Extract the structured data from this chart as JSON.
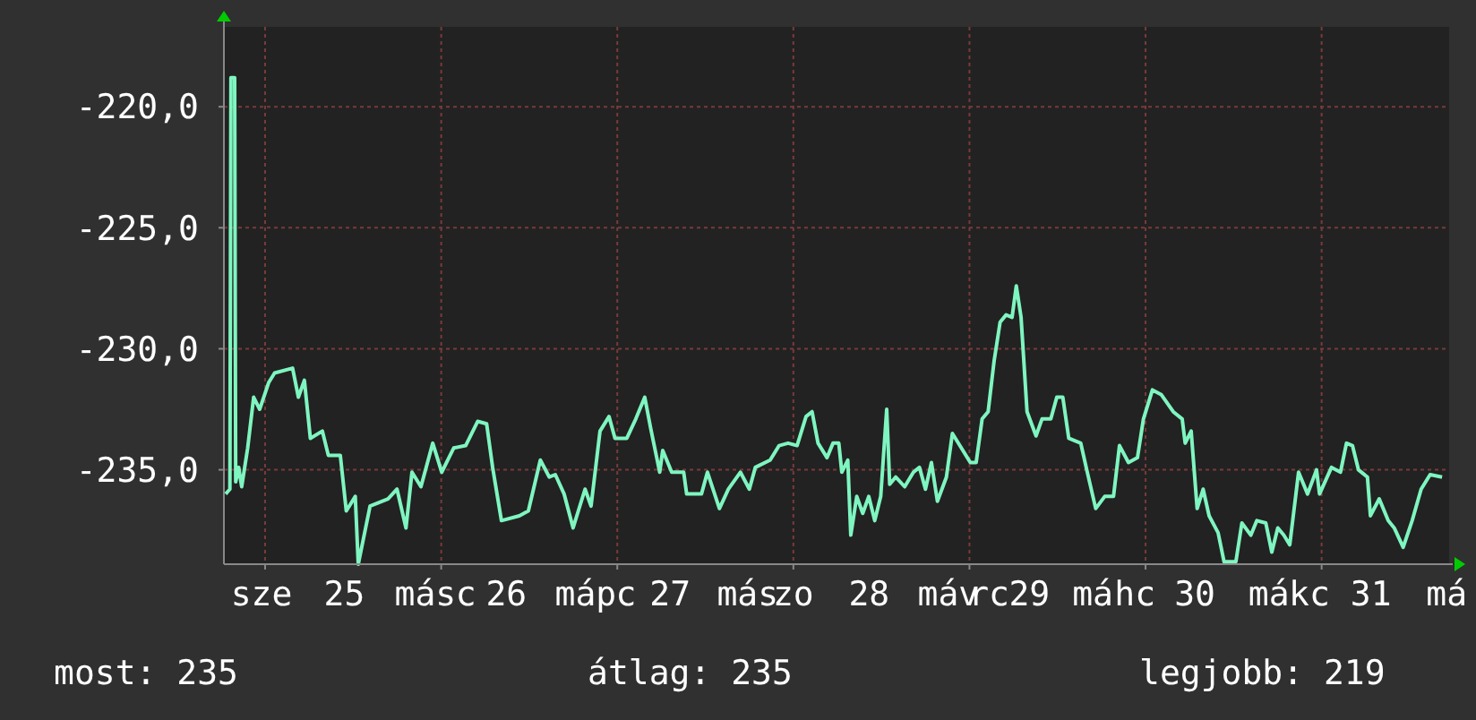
{
  "chart_data": {
    "type": "line",
    "x": [
      24.776,
      24.8,
      24.806,
      24.827,
      24.833,
      24.85,
      24.867,
      24.901,
      24.935,
      24.969,
      25.02,
      25.054,
      25.156,
      25.189,
      25.223,
      25.257,
      25.325,
      25.359,
      25.427,
      25.461,
      25.512,
      25.529,
      25.596,
      25.698,
      25.749,
      25.8,
      25.834,
      25.885,
      25.952,
      26.003,
      26.071,
      26.139,
      26.207,
      26.258,
      26.292,
      26.342,
      26.444,
      26.495,
      26.563,
      26.614,
      26.648,
      26.698,
      26.749,
      26.817,
      26.851,
      26.902,
      26.953,
      26.987,
      27.054,
      27.105,
      27.156,
      27.19,
      27.241,
      27.258,
      27.309,
      27.377,
      27.394,
      27.478,
      27.512,
      27.58,
      27.631,
      27.699,
      27.75,
      27.784,
      27.868,
      27.919,
      27.97,
      28.021,
      28.072,
      28.106,
      28.14,
      28.191,
      28.225,
      28.258,
      28.275,
      28.309,
      28.326,
      28.36,
      28.394,
      28.428,
      28.462,
      28.496,
      28.53,
      28.547,
      28.581,
      28.632,
      28.682,
      28.716,
      28.75,
      28.784,
      28.818,
      28.869,
      28.903,
      28.954,
      29.005,
      29.038,
      29.072,
      29.106,
      29.14,
      29.174,
      29.208,
      29.242,
      29.266,
      29.293,
      29.327,
      29.378,
      29.412,
      29.462,
      29.496,
      29.53,
      29.564,
      29.632,
      29.666,
      29.717,
      29.768,
      29.818,
      29.852,
      29.903,
      29.954,
      29.988,
      30.039,
      30.09,
      30.157,
      30.208,
      30.225,
      30.259,
      30.293,
      30.327,
      30.361,
      30.412,
      30.446,
      30.513,
      30.547,
      30.598,
      30.632,
      30.683,
      30.717,
      30.751,
      30.785,
      30.819,
      30.869,
      30.92,
      30.971,
      30.988,
      31.056,
      31.107,
      31.141,
      31.175,
      31.209,
      31.26,
      31.277,
      31.327,
      31.378,
      31.412,
      31.463,
      31.514,
      31.565,
      31.616,
      31.684
    ],
    "series": [
      {
        "color": "#7ff5c0",
        "values": [
          -236.0,
          -235.8,
          -218.8,
          -218.8,
          -235.5,
          -234.9,
          -235.7,
          -234.1,
          -232.0,
          -232.5,
          -231.4,
          -231.0,
          -230.8,
          -232.0,
          -231.3,
          -233.7,
          -233.4,
          -234.4,
          -234.4,
          -236.7,
          -236.1,
          -238.9,
          -236.5,
          -236.2,
          -235.8,
          -237.4,
          -235.1,
          -235.7,
          -233.9,
          -235.1,
          -234.1,
          -234.0,
          -233.0,
          -233.1,
          -234.9,
          -237.1,
          -236.9,
          -236.7,
          -234.6,
          -235.3,
          -235.2,
          -236.0,
          -237.4,
          -235.8,
          -236.5,
          -233.4,
          -232.8,
          -233.7,
          -233.7,
          -232.9,
          -232.0,
          -233.3,
          -235.1,
          -234.2,
          -235.1,
          -235.1,
          -236.0,
          -236.0,
          -235.1,
          -236.6,
          -235.8,
          -235.1,
          -235.8,
          -234.9,
          -234.6,
          -234.0,
          -233.9,
          -234.0,
          -232.8,
          -232.6,
          -233.9,
          -234.5,
          -233.9,
          -233.9,
          -235.1,
          -234.6,
          -237.7,
          -236.1,
          -236.8,
          -236.1,
          -237.1,
          -236.1,
          -232.5,
          -235.6,
          -235.3,
          -235.7,
          -235.1,
          -234.9,
          -235.8,
          -234.7,
          -236.3,
          -235.3,
          -233.5,
          -234.1,
          -234.7,
          -234.7,
          -232.9,
          -232.6,
          -230.5,
          -228.9,
          -228.6,
          -228.7,
          -227.4,
          -228.7,
          -232.6,
          -233.6,
          -232.9,
          -232.9,
          -232.0,
          -232.0,
          -233.7,
          -233.9,
          -235.0,
          -236.6,
          -236.1,
          -236.1,
          -234.0,
          -234.7,
          -234.5,
          -232.9,
          -231.7,
          -231.9,
          -232.6,
          -232.9,
          -233.9,
          -233.4,
          -236.6,
          -235.8,
          -236.9,
          -237.6,
          -238.8,
          -238.8,
          -237.2,
          -237.7,
          -237.1,
          -237.2,
          -238.4,
          -237.4,
          -237.7,
          -238.1,
          -235.1,
          -236.0,
          -235.0,
          -236.0,
          -234.9,
          -235.1,
          -233.9,
          -234.0,
          -235.0,
          -235.3,
          -236.9,
          -236.2,
          -237.1,
          -237.4,
          -238.2,
          -237.1,
          -235.8,
          -235.2,
          -235.3
        ]
      }
    ],
    "xlim": [
      24.766,
      31.724
    ],
    "xticks": [
      {
        "value": 25,
        "label": null
      },
      {
        "value": 26,
        "label": null
      },
      {
        "value": 27,
        "label": null
      },
      {
        "value": 28,
        "label": null
      },
      {
        "value": 29,
        "label": null
      },
      {
        "value": 30,
        "label": null
      },
      {
        "value": 31,
        "label": null
      },
      {
        "value": 24.98,
        "label": "sze"
      },
      {
        "value": 25.45,
        "label": "25"
      },
      {
        "value": 25.91,
        "label": "más"
      },
      {
        "value": 26.14,
        "label": "c"
      },
      {
        "value": 26.37,
        "label": "26"
      },
      {
        "value": 26.82,
        "label": "máp"
      },
      {
        "value": 27.05,
        "label": "c"
      },
      {
        "value": 27.3,
        "label": "27"
      },
      {
        "value": 27.74,
        "label": "más"
      },
      {
        "value": 28.0,
        "label": "zo"
      },
      {
        "value": 28.43,
        "label": "28"
      },
      {
        "value": 28.88,
        "label": "máv"
      },
      {
        "value": 29.11,
        "label": "rc"
      },
      {
        "value": 29.34,
        "label": "29"
      },
      {
        "value": 29.7,
        "label": "má"
      },
      {
        "value": 29.94,
        "label": "hc"
      },
      {
        "value": 30.28,
        "label": "30"
      },
      {
        "value": 30.7,
        "label": "má"
      },
      {
        "value": 30.93,
        "label": "kc"
      },
      {
        "value": 31.28,
        "label": "31"
      },
      {
        "value": 31.71,
        "label": "má"
      }
    ],
    "ylim": [
      -238.9,
      -216.7
    ],
    "yticks": [
      {
        "value": -220,
        "label": "-220,0"
      },
      {
        "value": -225,
        "label": "-225,0"
      },
      {
        "value": -230,
        "label": "-230,0"
      },
      {
        "value": -235,
        "label": "-235,0"
      }
    ],
    "grid": true,
    "annotations": [
      "most: 235",
      "átlag: 235",
      "legjobb: 219"
    ]
  }
}
